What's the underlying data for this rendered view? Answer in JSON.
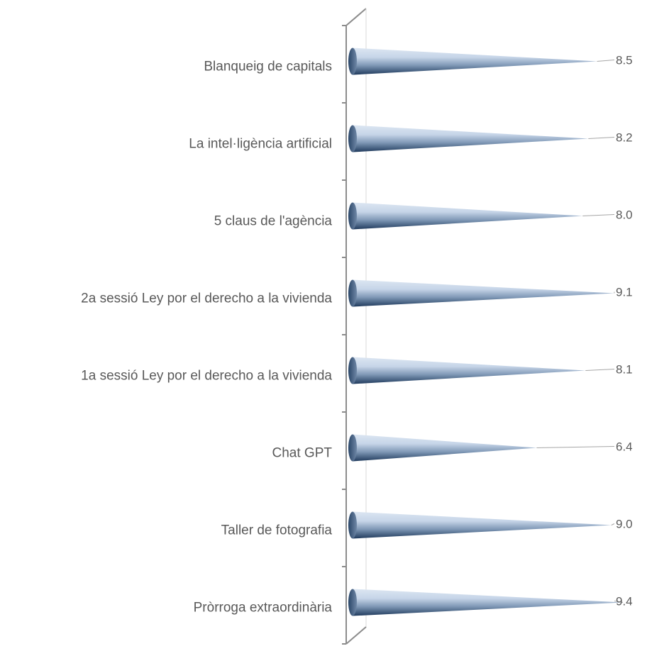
{
  "chart_data": {
    "type": "bar",
    "orientation": "horizontal",
    "style": "3d-cone",
    "categories": [
      "Blanqueig de capitals",
      "La intel·ligència artificial",
      "5 claus de l'agència",
      "2a sessió Ley por el derecho a la vivienda",
      "1a sessió Ley por el derecho a la vivienda",
      "Chat GPT",
      "Taller de fotografia",
      "Pròrroga extraordinària"
    ],
    "values": [
      8.5,
      8.2,
      8.0,
      9.1,
      8.1,
      6.4,
      9.0,
      9.4
    ],
    "value_labels": [
      "8.5",
      "8.2",
      "8.0",
      "9.1",
      "8.1",
      "6.4",
      "9.0",
      "9.4"
    ],
    "title": "",
    "xlabel": "",
    "ylabel": "",
    "grid": false,
    "legend": "none",
    "colors": {
      "cone_light": "#dce6f2",
      "cone_dark": "#1f3a5c",
      "axis": "#8c8c8c",
      "text": "#595959"
    }
  }
}
